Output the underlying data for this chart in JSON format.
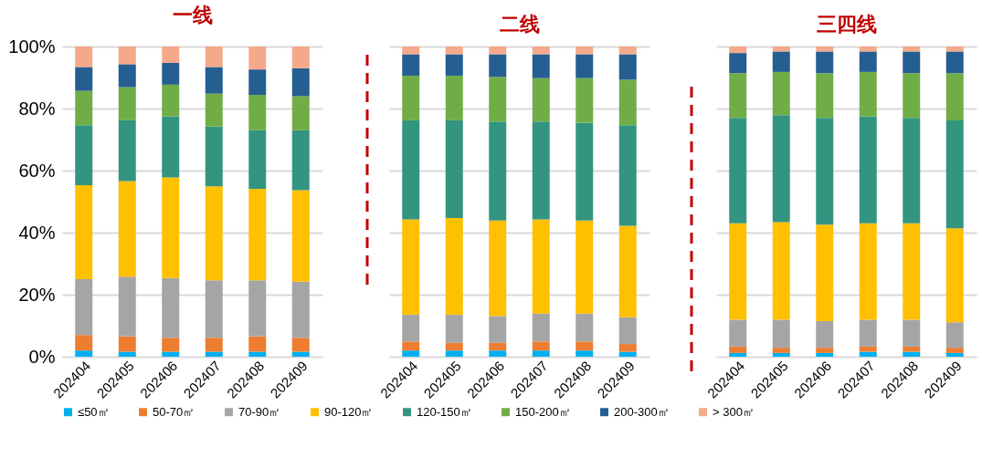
{
  "chart_data": [
    {
      "type": "bar",
      "title": "一线",
      "stacked": true,
      "grid": "y",
      "legend": "bottom",
      "categories": [
        "202404",
        "202405",
        "202406",
        "202407",
        "202408",
        "202409"
      ],
      "ylim": [
        0,
        100
      ],
      "yticks": [
        {
          "value": 0,
          "label": "0%"
        },
        {
          "value": 20,
          "label": "20%"
        },
        {
          "value": 40,
          "label": "40%"
        },
        {
          "value": 60,
          "label": "60%"
        },
        {
          "value": 80,
          "label": "80%"
        },
        {
          "value": 100,
          "label": "100%"
        }
      ],
      "series": [
        {
          "name": "≤50㎡",
          "color": "#00b0f0",
          "values": [
            2.0,
            1.6,
            1.6,
            1.6,
            1.6,
            1.6
          ]
        },
        {
          "name": "50-70㎡",
          "color": "#ed7d31",
          "values": [
            5.0,
            5.0,
            4.5,
            4.5,
            5.0,
            4.5
          ]
        },
        {
          "name": "70-90㎡",
          "color": "#a5a5a5",
          "values": [
            18.0,
            19.2,
            19.3,
            18.5,
            18.0,
            18.1
          ]
        },
        {
          "name": "90-120㎡",
          "color": "#ffc000",
          "values": [
            30.3,
            30.8,
            32.4,
            30.3,
            29.5,
            29.5
          ]
        },
        {
          "name": "120-150㎡",
          "color": "#339580",
          "values": [
            19.3,
            19.6,
            19.7,
            19.3,
            18.9,
            19.3
          ]
        },
        {
          "name": "150-200㎡",
          "color": "#70ad47",
          "values": [
            11.1,
            10.7,
            10.2,
            10.6,
            11.4,
            11.0
          ]
        },
        {
          "name": "200-300㎡",
          "color": "#255e91",
          "values": [
            7.7,
            7.4,
            7.0,
            8.6,
            8.2,
            9.0
          ]
        },
        {
          "name": "> 300㎡",
          "color": "#f4a98a",
          "values": [
            6.6,
            5.7,
            5.3,
            6.6,
            7.4,
            7.0
          ]
        }
      ]
    },
    {
      "type": "bar",
      "title": "二线",
      "stacked": true,
      "grid": "y",
      "legend": "bottom",
      "tick_labels": "x",
      "categories": [
        "202404",
        "202405",
        "202406",
        "202407",
        "202408",
        "202409"
      ],
      "ylim": [
        0,
        100
      ],
      "yticks": [
        0,
        20,
        40,
        60,
        80,
        100
      ],
      "series": [
        {
          "name": "≤50㎡",
          "color": "#00b0f0",
          "values": [
            2.0,
            2.0,
            2.0,
            2.0,
            2.0,
            1.6
          ]
        },
        {
          "name": "50-70㎡",
          "color": "#ed7d31",
          "values": [
            2.9,
            2.5,
            2.5,
            2.9,
            2.9,
            2.5
          ]
        },
        {
          "name": "70-90㎡",
          "color": "#a5a5a5",
          "values": [
            8.6,
            9.0,
            8.6,
            9.0,
            9.0,
            8.6
          ]
        },
        {
          "name": "90-120㎡",
          "color": "#ffc000",
          "values": [
            30.8,
            31.2,
            30.8,
            30.4,
            30.0,
            29.5
          ]
        },
        {
          "name": "120-150㎡",
          "color": "#339580",
          "values": [
            31.9,
            31.5,
            31.9,
            31.5,
            31.5,
            32.4
          ]
        },
        {
          "name": "150-200㎡",
          "color": "#70ad47",
          "values": [
            14.4,
            14.4,
            14.4,
            14.0,
            14.4,
            14.7
          ]
        },
        {
          "name": "200-300㎡",
          "color": "#255e91",
          "values": [
            6.9,
            6.9,
            7.3,
            7.7,
            7.7,
            8.2
          ]
        },
        {
          "name": "> 300㎡",
          "color": "#f4a98a",
          "values": [
            2.5,
            2.5,
            2.5,
            2.5,
            2.5,
            2.5
          ]
        }
      ]
    },
    {
      "type": "bar",
      "title": "三四线",
      "stacked": true,
      "grid": "y",
      "legend": "bottom",
      "tick_labels": "x",
      "categories": [
        "202404",
        "202405",
        "202406",
        "202407",
        "202408",
        "202409"
      ],
      "ylim": [
        0,
        100
      ],
      "yticks": [
        0,
        20,
        40,
        60,
        80,
        100
      ],
      "series": [
        {
          "name": "≤50㎡",
          "color": "#00b0f0",
          "values": [
            1.2,
            1.2,
            1.2,
            1.6,
            1.6,
            1.2
          ]
        },
        {
          "name": "50-70㎡",
          "color": "#ed7d31",
          "values": [
            2.1,
            1.7,
            1.7,
            1.7,
            1.7,
            1.7
          ]
        },
        {
          "name": "70-90㎡",
          "color": "#a5a5a5",
          "values": [
            8.6,
            9.0,
            8.6,
            8.6,
            8.6,
            8.2
          ]
        },
        {
          "name": "90-120㎡",
          "color": "#ffc000",
          "values": [
            31.1,
            31.5,
            31.1,
            31.1,
            31.1,
            30.3
          ]
        },
        {
          "name": "120-150㎡",
          "color": "#339580",
          "values": [
            34.0,
            34.5,
            34.4,
            34.5,
            34.0,
            34.8
          ]
        },
        {
          "name": "150-200㎡",
          "color": "#70ad47",
          "values": [
            14.4,
            13.9,
            14.4,
            14.3,
            14.4,
            15.2
          ]
        },
        {
          "name": "200-300㎡",
          "color": "#255e91",
          "values": [
            6.5,
            6.6,
            7.0,
            6.6,
            7.0,
            7.0
          ]
        },
        {
          "name": "> 300㎡",
          "color": "#f4a98a",
          "values": [
            2.1,
            1.6,
            1.6,
            1.6,
            1.6,
            1.6
          ]
        }
      ]
    }
  ]
}
